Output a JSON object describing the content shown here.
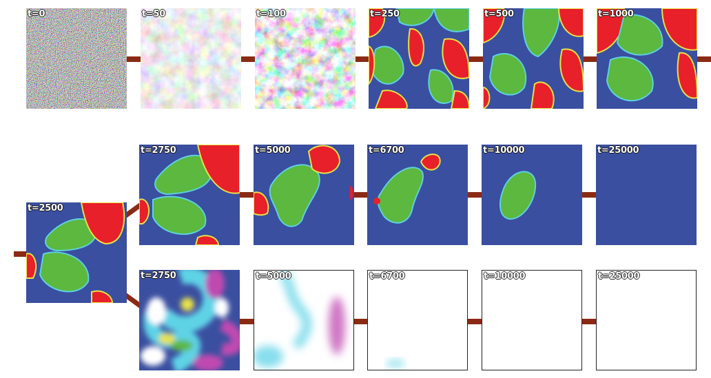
{
  "colors": {
    "background_blue": "#3a4fa0",
    "phase_red": "#e8202a",
    "phase_green": "#5cb83e",
    "interface_yellow": "#e8e24a",
    "interface_cyan": "#5fd0e0",
    "connector": "#8b2a14",
    "cyan_field": "#5fd3e6",
    "magenta_field": "#c04ab0"
  },
  "top_row": [
    {
      "label": "t=0",
      "style": "noise"
    },
    {
      "label": "t=50",
      "style": "pastel"
    },
    {
      "label": "t=100",
      "style": "mottled"
    },
    {
      "label": "t=250",
      "style": "coarsening"
    },
    {
      "label": "t=500",
      "style": "coarsening2"
    },
    {
      "label": "t=1000",
      "style": "coarsening3"
    }
  ],
  "branch_point": {
    "label": "t=2500",
    "style": "branch"
  },
  "upper_branch": [
    {
      "label": "t=2750",
      "style": "u2750"
    },
    {
      "label": "t=5000",
      "style": "u5000"
    },
    {
      "label": "t=6700",
      "style": "u6700"
    },
    {
      "label": "t=10000",
      "style": "u10000"
    },
    {
      "label": "t=25000",
      "style": "u25000"
    }
  ],
  "lower_branch": [
    {
      "label": "t=2750",
      "style": "l2750"
    },
    {
      "label": "t=5000",
      "style": "l5000"
    },
    {
      "label": "t=6700",
      "style": "l6700"
    },
    {
      "label": "t=10000",
      "style": "l10000"
    },
    {
      "label": "t=25000",
      "style": "l25000"
    }
  ]
}
